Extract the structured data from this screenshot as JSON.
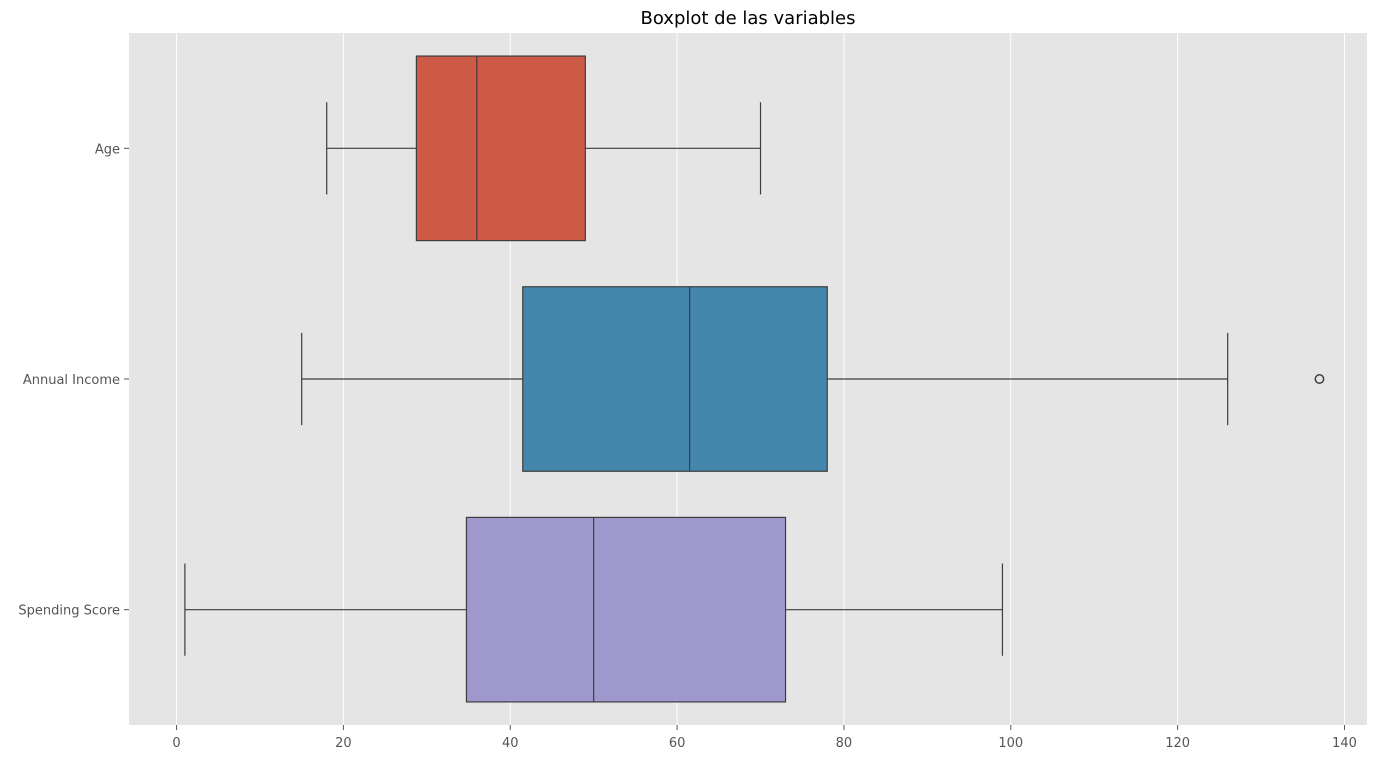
{
  "chart_data": {
    "type": "boxplot",
    "orientation": "horizontal",
    "title": "Boxplot de las variables",
    "xlabel": "",
    "ylabel": "",
    "xlim": [
      -5.7,
      142.7
    ],
    "xticks": [
      0,
      20,
      40,
      60,
      80,
      100,
      120,
      140
    ],
    "xtick_labels": [
      "0",
      "20",
      "40",
      "60",
      "80",
      "100",
      "120",
      "140"
    ],
    "grid": true,
    "colors": {
      "background": "#E5E5E5",
      "grid": "#FFFFFF",
      "box_edge": "#3D3D3D"
    },
    "categories": [
      "Age",
      "Annual Income",
      "Spending Score"
    ],
    "series": [
      {
        "category": "Age",
        "whisker_low": 18,
        "q1": 28.75,
        "median": 36,
        "q3": 49,
        "whisker_high": 70,
        "outliers": [],
        "color": "#CC5A47"
      },
      {
        "category": "Annual Income",
        "whisker_low": 15,
        "q1": 41.5,
        "median": 61.5,
        "q3": 78,
        "whisker_high": 126,
        "outliers": [
          137
        ],
        "color": "#4586AD"
      },
      {
        "category": "Spending Score",
        "whisker_low": 1,
        "q1": 34.75,
        "median": 50,
        "q3": 73,
        "whisker_high": 99,
        "outliers": [],
        "color": "#9F98CC"
      }
    ]
  }
}
